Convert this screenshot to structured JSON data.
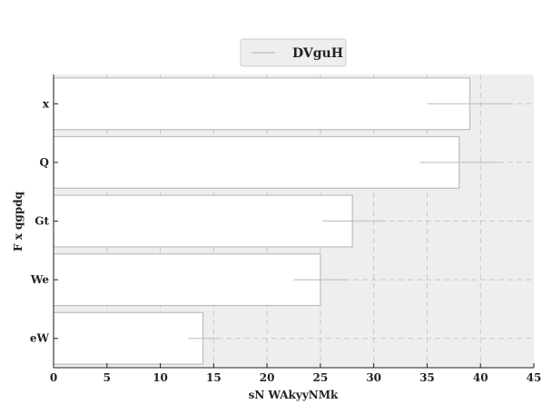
{
  "chart_data": {
    "type": "bar",
    "orientation": "horizontal",
    "categories": [
      "x",
      "Q",
      "Gt",
      "We",
      "eW"
    ],
    "series": [
      {
        "name": "DVguH",
        "values": [
          39,
          38,
          28,
          25,
          14
        ],
        "errors": [
          4,
          3.7,
          2.8,
          2.5,
          1.4
        ]
      }
    ],
    "xlabel": "sN WAkyyNMk",
    "ylabel": "F x qgpdq",
    "xlim": [
      0,
      45
    ],
    "xticks": [
      0,
      5,
      10,
      15,
      20,
      25,
      30,
      35,
      40,
      45
    ],
    "grid": true,
    "legend_position": "top-center",
    "colors": {
      "plot_background": "#eeeeee",
      "bar_fill": "#ffffff",
      "bar_edge": "#bcbcbc",
      "error_bar": "#c4c4c4",
      "grid": "#c8c8c8",
      "axis": "#222222"
    }
  }
}
